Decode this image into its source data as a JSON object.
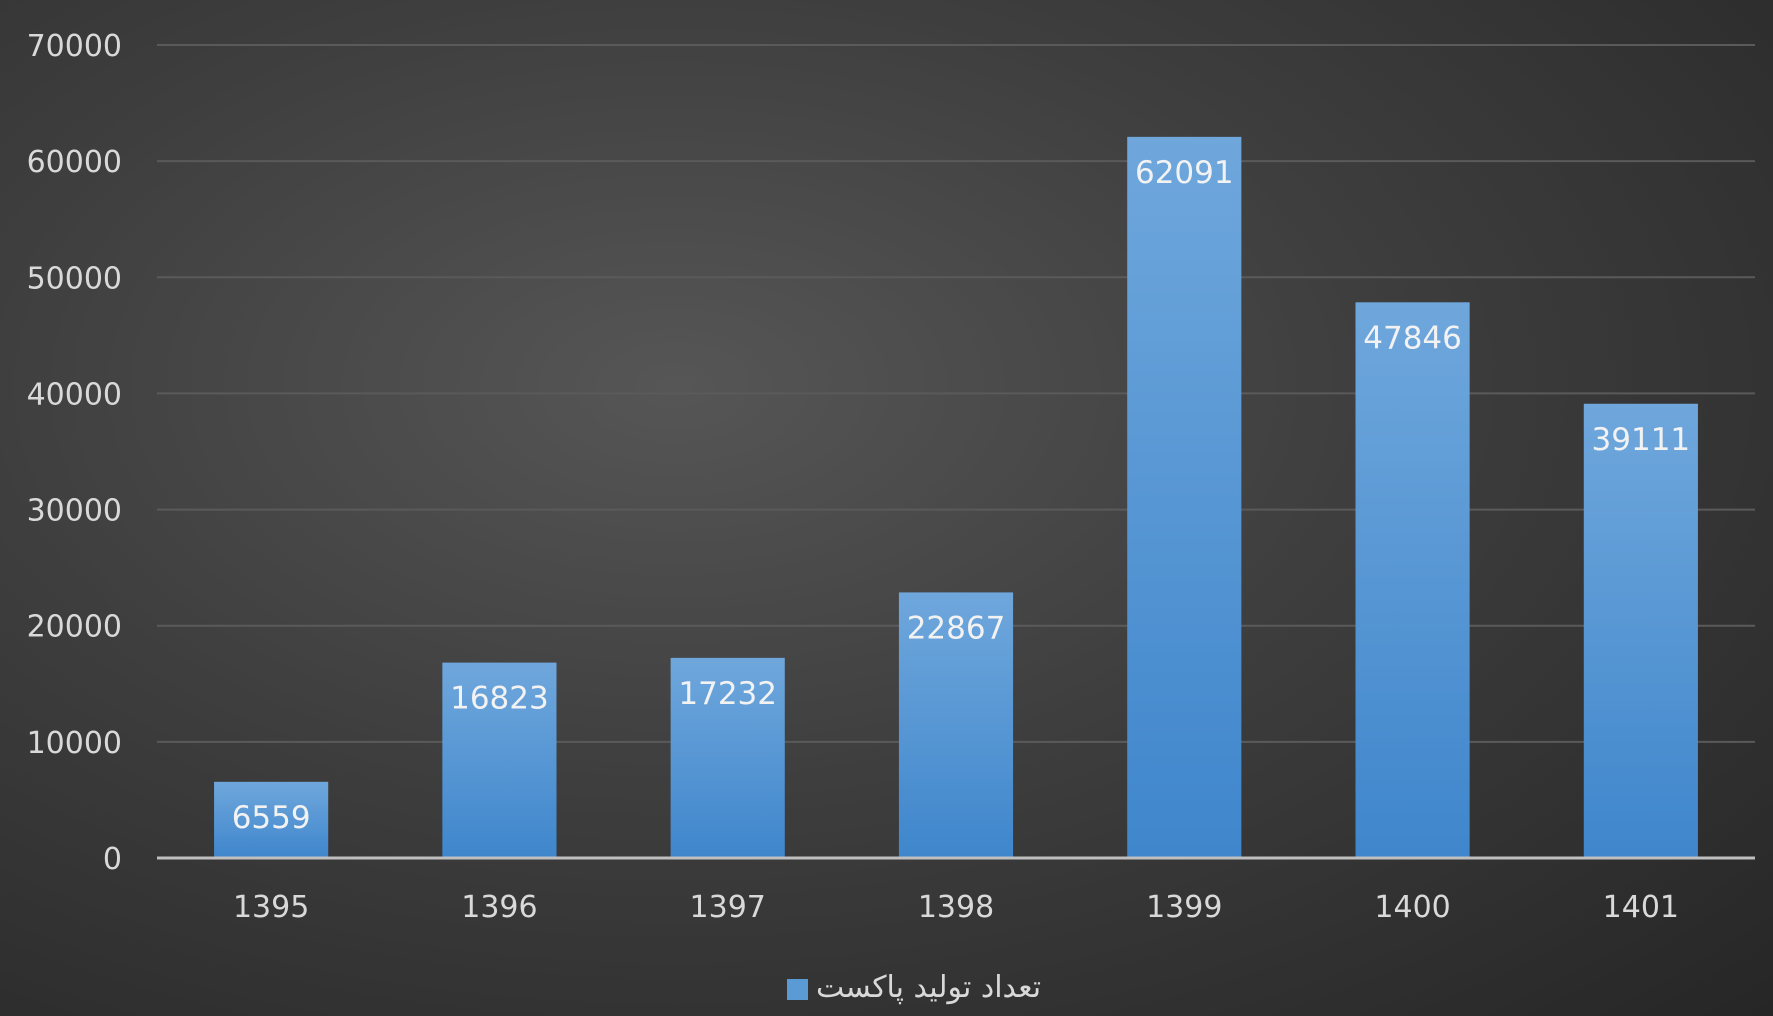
{
  "chart_data": {
    "type": "bar",
    "categories": [
      "1395",
      "1396",
      "1397",
      "1398",
      "1399",
      "1400",
      "1401"
    ],
    "series": [
      {
        "name": "تعداد تولید پاکست",
        "values": [
          6559,
          16823,
          17232,
          22867,
          62091,
          47846,
          39111
        ],
        "color": "#5b9bd5"
      }
    ],
    "ylim": [
      0,
      70000
    ],
    "yticks": [
      0,
      10000,
      20000,
      30000,
      40000,
      50000,
      60000,
      70000
    ],
    "data_labels": true,
    "grid": true,
    "legend_position": "bottom",
    "colors": {
      "background": "#404040",
      "gridline": "#5a5a5a",
      "axis": "#bfbfbf",
      "bar_top": "#6fa7dc",
      "bar_bottom": "#3f86cc",
      "text": "#d9d9d9"
    }
  }
}
